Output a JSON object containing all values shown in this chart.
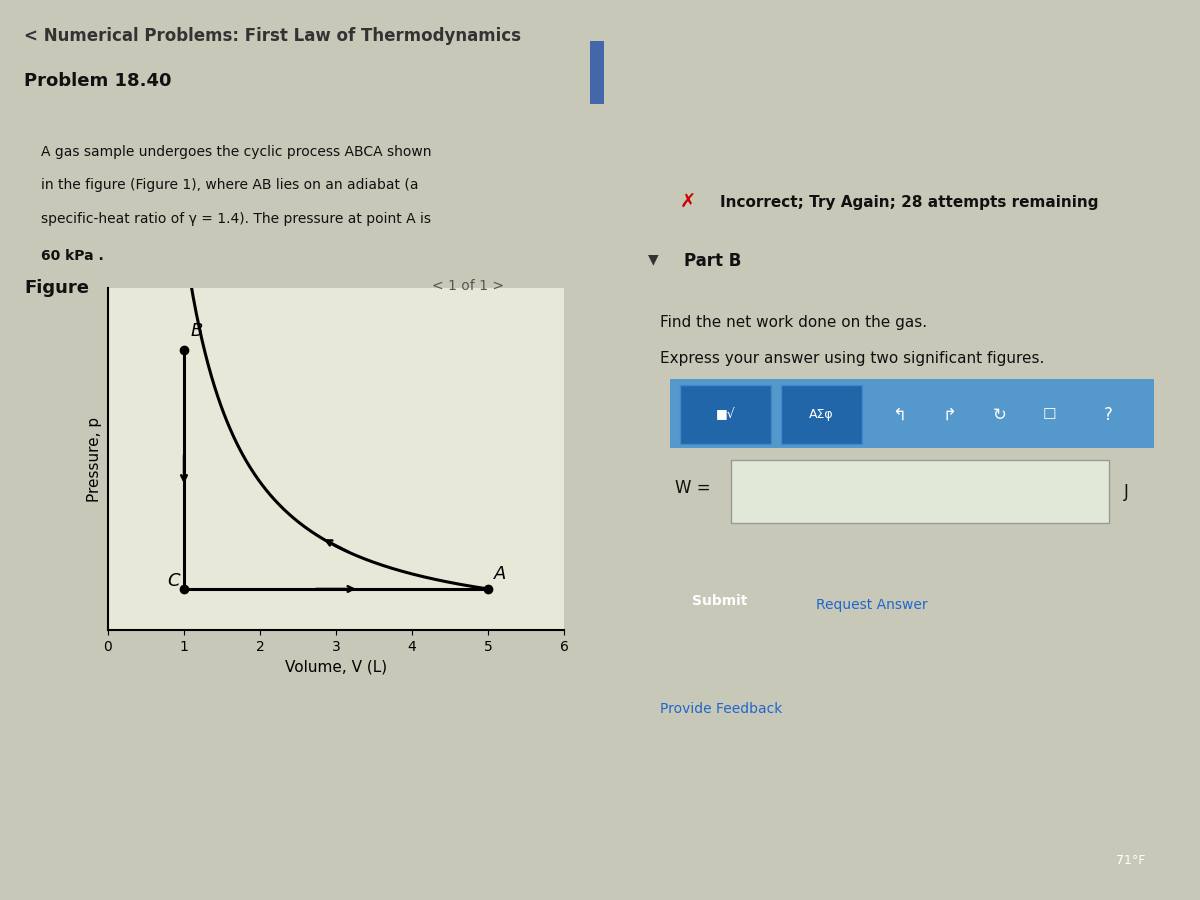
{
  "title_top": "< Numerical Problems: First Law of Thermodynamics",
  "problem_title": "Problem 18.40",
  "problem_text_line1": "A gas sample undergoes the cyclic process ABCA shown",
  "problem_text_line2": "in the figure (Figure 1), where AB lies on an adiabat (a",
  "problem_text_line3": "specific-heat ratio of γ = 1.4). The pressure at point A is",
  "problem_text_line4": "60 kPa .",
  "figure_label": "Figure",
  "figure_nav": "< 1 of 1 >",
  "xlabel": "Volume, V (L)",
  "ylabel": "Pressure, p",
  "xlim": [
    0,
    6
  ],
  "ylim": [
    0,
    1
  ],
  "x_ticks": [
    0,
    1,
    2,
    3,
    4,
    5,
    6
  ],
  "point_B": [
    1,
    0.82
  ],
  "point_C": [
    1,
    0.12
  ],
  "point_A": [
    5,
    0.12
  ],
  "gamma": 1.4,
  "bg_color": "#c8c8b8",
  "plot_bg": "#e8e8d8",
  "text_box_bg": "#d8d8c8",
  "right_panel_bg": "#c8c8b8",
  "submit_btn_color": "#2ab5b5",
  "incorrect_text": "Incorrect; Try Again; 28 attempts remaining",
  "part_b_text": "Part B",
  "find_text": "Find the net work done on the gas.",
  "express_text": "Express your answer using two significant figures.",
  "w_label": "W =",
  "j_label": "J",
  "submit_text": "Submit",
  "request_text": "Request Answer",
  "feedback_text": "Provide Feedback",
  "taskbar_temp": "71°F"
}
